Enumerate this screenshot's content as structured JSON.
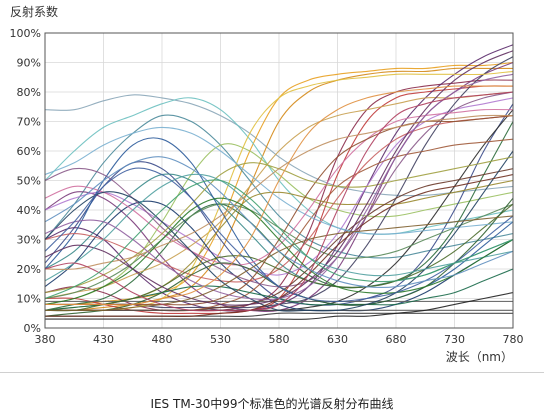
{
  "caption": "IES TM-30中99个标准色的光谱反射分布曲线",
  "chart_data": {
    "type": "line",
    "ylabel": "反射系数",
    "xlabel": "波长（nm）",
    "x_ticks": [
      380,
      430,
      480,
      530,
      580,
      630,
      680,
      730,
      780
    ],
    "y_ticks": [
      "0%",
      "10%",
      "20%",
      "30%",
      "40%",
      "50%",
      "60%",
      "70%",
      "80%",
      "90%",
      "100%"
    ],
    "xlim": [
      380,
      780
    ],
    "ylim": [
      0,
      100
    ],
    "grid": true,
    "x": [
      380,
      405,
      430,
      455,
      480,
      505,
      530,
      555,
      580,
      605,
      630,
      655,
      680,
      705,
      730,
      755,
      780
    ],
    "series": [
      {
        "color": "#8aa6b8",
        "values": [
          74,
          74,
          77,
          79,
          78,
          76,
          72,
          66,
          58,
          52,
          48,
          46,
          45,
          45,
          46,
          47,
          48
        ]
      },
      {
        "color": "#e8a020",
        "values": [
          8,
          8,
          9,
          10,
          12,
          18,
          35,
          60,
          78,
          84,
          86,
          87,
          88,
          88,
          89,
          89,
          90
        ]
      },
      {
        "color": "#d48a18",
        "values": [
          6,
          6,
          7,
          8,
          10,
          14,
          26,
          48,
          70,
          80,
          84,
          86,
          87,
          87,
          88,
          88,
          88
        ]
      },
      {
        "color": "#4a8a9a",
        "values": [
          30,
          42,
          56,
          66,
          72,
          70,
          62,
          50,
          38,
          30,
          26,
          24,
          24,
          26,
          28,
          30,
          32
        ]
      },
      {
        "color": "#6cc0c0",
        "values": [
          50,
          60,
          68,
          72,
          76,
          78,
          74,
          64,
          50,
          40,
          34,
          32,
          32,
          34,
          36,
          38,
          40
        ]
      },
      {
        "color": "#9ac060",
        "values": [
          8,
          10,
          14,
          22,
          36,
          52,
          62,
          60,
          52,
          44,
          40,
          38,
          38,
          40,
          42,
          44,
          46
        ]
      },
      {
        "color": "#3a4a8a",
        "values": [
          22,
          34,
          48,
          56,
          54,
          44,
          30,
          18,
          10,
          8,
          8,
          10,
          14,
          24,
          40,
          60,
          76
        ]
      },
      {
        "color": "#8a2a4a",
        "values": [
          12,
          14,
          12,
          8,
          6,
          6,
          6,
          8,
          14,
          32,
          58,
          74,
          80,
          82,
          83,
          84,
          84
        ]
      },
      {
        "color": "#c03a3a",
        "values": [
          10,
          10,
          8,
          6,
          5,
          5,
          5,
          6,
          10,
          26,
          52,
          70,
          78,
          80,
          81,
          82,
          82
        ]
      },
      {
        "color": "#5a2a6a",
        "values": [
          30,
          34,
          30,
          20,
          12,
          8,
          6,
          6,
          8,
          14,
          28,
          48,
          66,
          78,
          86,
          92,
          96
        ]
      },
      {
        "color": "#2a6a3a",
        "values": [
          6,
          8,
          10,
          16,
          26,
          38,
          42,
          36,
          26,
          18,
          14,
          14,
          16,
          22,
          34,
          52,
          70
        ]
      },
      {
        "color": "#7a3a7a",
        "values": [
          40,
          46,
          44,
          36,
          24,
          14,
          8,
          6,
          6,
          10,
          20,
          38,
          58,
          72,
          80,
          86,
          90
        ]
      },
      {
        "color": "#b07ad0",
        "values": [
          40,
          44,
          46,
          42,
          36,
          30,
          24,
          20,
          18,
          22,
          32,
          48,
          62,
          70,
          74,
          76,
          78
        ]
      },
      {
        "color": "#2a2a2a",
        "values": [
          6,
          6,
          6,
          6,
          6,
          6,
          6,
          6,
          6,
          7,
          9,
          14,
          22,
          34,
          48,
          62,
          74
        ]
      },
      {
        "color": "#404060",
        "values": [
          8,
          8,
          8,
          8,
          7,
          7,
          7,
          7,
          8,
          10,
          16,
          28,
          44,
          62,
          76,
          86,
          92
        ]
      },
      {
        "color": "#c8a050",
        "values": [
          10,
          12,
          14,
          18,
          22,
          28,
          36,
          48,
          60,
          68,
          72,
          74,
          76,
          78,
          78,
          79,
          80
        ]
      },
      {
        "color": "#e0c040",
        "values": [
          6,
          6,
          6,
          7,
          10,
          20,
          42,
          66,
          78,
          82,
          84,
          85,
          86,
          86,
          86,
          86,
          87
        ]
      },
      {
        "color": "#9a8a30",
        "values": [
          6,
          7,
          8,
          10,
          14,
          22,
          34,
          44,
          46,
          44,
          42,
          42,
          42,
          44,
          46,
          48,
          50
        ]
      },
      {
        "color": "#5a8a5a",
        "values": [
          10,
          12,
          16,
          22,
          30,
          38,
          42,
          40,
          34,
          28,
          24,
          24,
          26,
          30,
          34,
          38,
          42
        ]
      },
      {
        "color": "#3a8a8a",
        "values": [
          20,
          26,
          36,
          46,
          52,
          50,
          42,
          32,
          22,
          16,
          14,
          14,
          16,
          18,
          22,
          26,
          30
        ]
      },
      {
        "color": "#2a5a9a",
        "values": [
          20,
          32,
          50,
          62,
          64,
          56,
          40,
          24,
          14,
          10,
          8,
          8,
          10,
          14,
          20,
          28,
          36
        ]
      },
      {
        "color": "#1a3a6a",
        "values": [
          14,
          22,
          34,
          42,
          42,
          34,
          22,
          14,
          8,
          6,
          6,
          6,
          8,
          12,
          18,
          24,
          30
        ]
      },
      {
        "color": "#6a3a2a",
        "values": [
          6,
          6,
          6,
          6,
          6,
          6,
          7,
          8,
          12,
          20,
          30,
          38,
          44,
          48,
          50,
          52,
          54
        ]
      },
      {
        "color": "#a05a3a",
        "values": [
          6,
          6,
          6,
          6,
          6,
          6,
          8,
          12,
          22,
          36,
          48,
          54,
          58,
          60,
          62,
          63,
          64
        ]
      },
      {
        "color": "#3a3a3a",
        "values": [
          4,
          4,
          4,
          4,
          4,
          4,
          4,
          4,
          5,
          5,
          5,
          5,
          5,
          5,
          5,
          5,
          5
        ]
      },
      {
        "color": "#505050",
        "values": [
          6,
          6,
          6,
          6,
          6,
          6,
          6,
          6,
          6,
          6,
          6,
          6,
          6,
          6,
          6,
          6,
          6
        ]
      },
      {
        "color": "#606060",
        "values": [
          9,
          9,
          9,
          9,
          9,
          9,
          9,
          9,
          9,
          9,
          9,
          9,
          9,
          9,
          9,
          9,
          9
        ]
      },
      {
        "color": "#1a6a4a",
        "values": [
          6,
          7,
          8,
          10,
          12,
          14,
          14,
          12,
          10,
          8,
          8,
          8,
          8,
          10,
          12,
          16,
          20
        ]
      },
      {
        "color": "#8a5a8a",
        "values": [
          50,
          54,
          52,
          44,
          34,
          26,
          20,
          16,
          14,
          16,
          24,
          38,
          54,
          66,
          74,
          78,
          80
        ]
      },
      {
        "color": "#c86060",
        "values": [
          30,
          32,
          30,
          26,
          22,
          18,
          16,
          16,
          20,
          30,
          44,
          56,
          64,
          68,
          70,
          71,
          72
        ]
      },
      {
        "color": "#4a6a2a",
        "values": [
          6,
          6,
          8,
          10,
          14,
          20,
          24,
          24,
          20,
          16,
          14,
          14,
          16,
          20,
          26,
          34,
          42
        ]
      },
      {
        "color": "#7ab0d0",
        "values": [
          52,
          56,
          62,
          66,
          68,
          66,
          60,
          52,
          44,
          38,
          34,
          32,
          32,
          33,
          34,
          35,
          36
        ]
      },
      {
        "color": "#d070a0",
        "values": [
          44,
          48,
          46,
          40,
          32,
          26,
          22,
          22,
          28,
          40,
          54,
          64,
          70,
          72,
          73,
          74,
          74
        ]
      },
      {
        "color": "#306030",
        "values": [
          4,
          5,
          6,
          8,
          12,
          18,
          22,
          20,
          14,
          10,
          8,
          8,
          10,
          14,
          22,
          32,
          44
        ]
      },
      {
        "color": "#905030",
        "values": [
          8,
          8,
          8,
          8,
          8,
          8,
          10,
          16,
          30,
          46,
          58,
          64,
          68,
          70,
          70,
          71,
          72
        ]
      },
      {
        "color": "#204060",
        "values": [
          30,
          40,
          46,
          44,
          36,
          26,
          16,
          10,
          6,
          6,
          6,
          8,
          12,
          20,
          32,
          46,
          60
        ]
      },
      {
        "color": "#a0a040",
        "values": [
          12,
          14,
          18,
          24,
          32,
          42,
          52,
          56,
          54,
          50,
          48,
          48,
          50,
          52,
          54,
          56,
          58
        ]
      },
      {
        "color": "#603060",
        "values": [
          24,
          28,
          26,
          20,
          14,
          10,
          8,
          8,
          10,
          16,
          26,
          42,
          60,
          74,
          84,
          90,
          94
        ]
      },
      {
        "color": "#50a0a0",
        "values": [
          16,
          22,
          30,
          40,
          48,
          52,
          50,
          42,
          32,
          24,
          20,
          18,
          18,
          20,
          22,
          24,
          26
        ]
      },
      {
        "color": "#c09060",
        "values": [
          20,
          20,
          22,
          24,
          28,
          32,
          38,
          46,
          54,
          60,
          64,
          66,
          68,
          70,
          71,
          72,
          72
        ]
      },
      {
        "color": "#703020",
        "values": [
          4,
          4,
          4,
          4,
          4,
          4,
          5,
          6,
          10,
          18,
          28,
          36,
          42,
          46,
          48,
          50,
          52
        ]
      },
      {
        "color": "#2a7a2a",
        "values": [
          8,
          10,
          14,
          20,
          30,
          40,
          44,
          40,
          30,
          20,
          14,
          12,
          12,
          14,
          18,
          24,
          30
        ]
      },
      {
        "color": "#9060a0",
        "values": [
          32,
          36,
          36,
          30,
          22,
          16,
          12,
          10,
          10,
          14,
          24,
          40,
          58,
          72,
          80,
          84,
          86
        ]
      },
      {
        "color": "#e09040",
        "values": [
          8,
          8,
          8,
          8,
          10,
          12,
          18,
          30,
          50,
          66,
          74,
          78,
          80,
          81,
          82,
          82,
          82
        ]
      },
      {
        "color": "#4060a0",
        "values": [
          26,
          36,
          48,
          54,
          52,
          44,
          32,
          22,
          14,
          10,
          9,
          10,
          12,
          16,
          22,
          30,
          38
        ]
      },
      {
        "color": "#202020",
        "values": [
          3,
          3,
          3,
          3,
          3,
          3,
          3,
          3,
          3,
          3,
          4,
          4,
          5,
          6,
          8,
          10,
          12
        ]
      },
      {
        "color": "#806030",
        "values": [
          6,
          6,
          6,
          7,
          8,
          10,
          14,
          20,
          26,
          30,
          32,
          33,
          34,
          35,
          36,
          37,
          38
        ]
      },
      {
        "color": "#b04060",
        "values": [
          20,
          22,
          18,
          12,
          8,
          6,
          6,
          6,
          8,
          18,
          40,
          60,
          72,
          76,
          78,
          79,
          80
        ]
      },
      {
        "color": "#6090c0",
        "values": [
          36,
          42,
          50,
          56,
          58,
          54,
          46,
          36,
          26,
          20,
          16,
          14,
          14,
          16,
          18,
          22,
          26
        ]
      },
      {
        "color": "#40a070",
        "values": [
          10,
          14,
          20,
          30,
          40,
          48,
          50,
          44,
          34,
          24,
          18,
          16,
          16,
          18,
          22,
          26,
          30
        ]
      }
    ]
  }
}
